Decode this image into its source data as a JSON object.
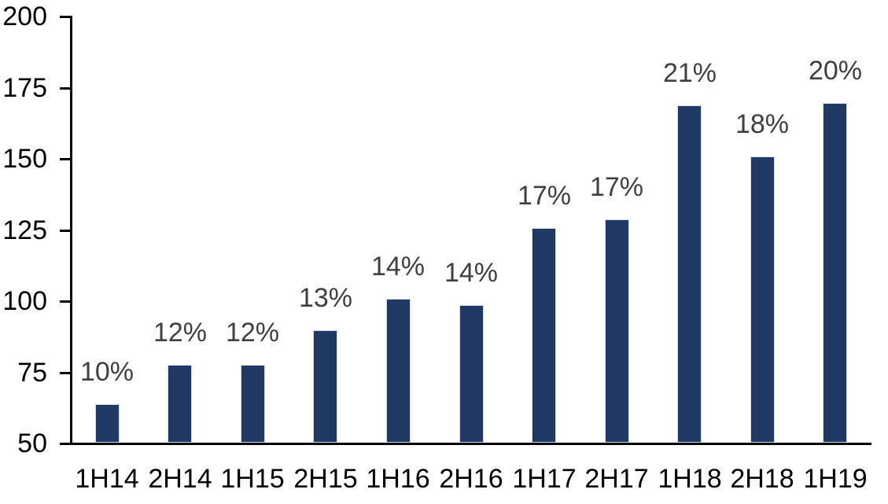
{
  "chart_data": {
    "type": "bar",
    "categories": [
      "1H14",
      "2H14",
      "1H15",
      "2H15",
      "1H16",
      "2H16",
      "1H17",
      "2H17",
      "1H18",
      "2H18",
      "1H19"
    ],
    "values": [
      64,
      78,
      78,
      90,
      101,
      99,
      126,
      129,
      169,
      151,
      170
    ],
    "bar_labels": [
      "10%",
      "12%",
      "12%",
      "13%",
      "14%",
      "14%",
      "17%",
      "17%",
      "21%",
      "18%",
      "20%"
    ],
    "title": "",
    "xlabel": "",
    "ylabel": "",
    "ylim": [
      50,
      200
    ],
    "yticks": [
      50,
      75,
      100,
      125,
      150,
      175,
      200
    ],
    "grid": false,
    "legend": false,
    "colors": {
      "bar_fill": "#1f3864",
      "bar_border": "#d6dce4",
      "axis": "#000000",
      "tick_label": "#000000",
      "data_label": "#404040",
      "background": "#ffffff"
    }
  }
}
